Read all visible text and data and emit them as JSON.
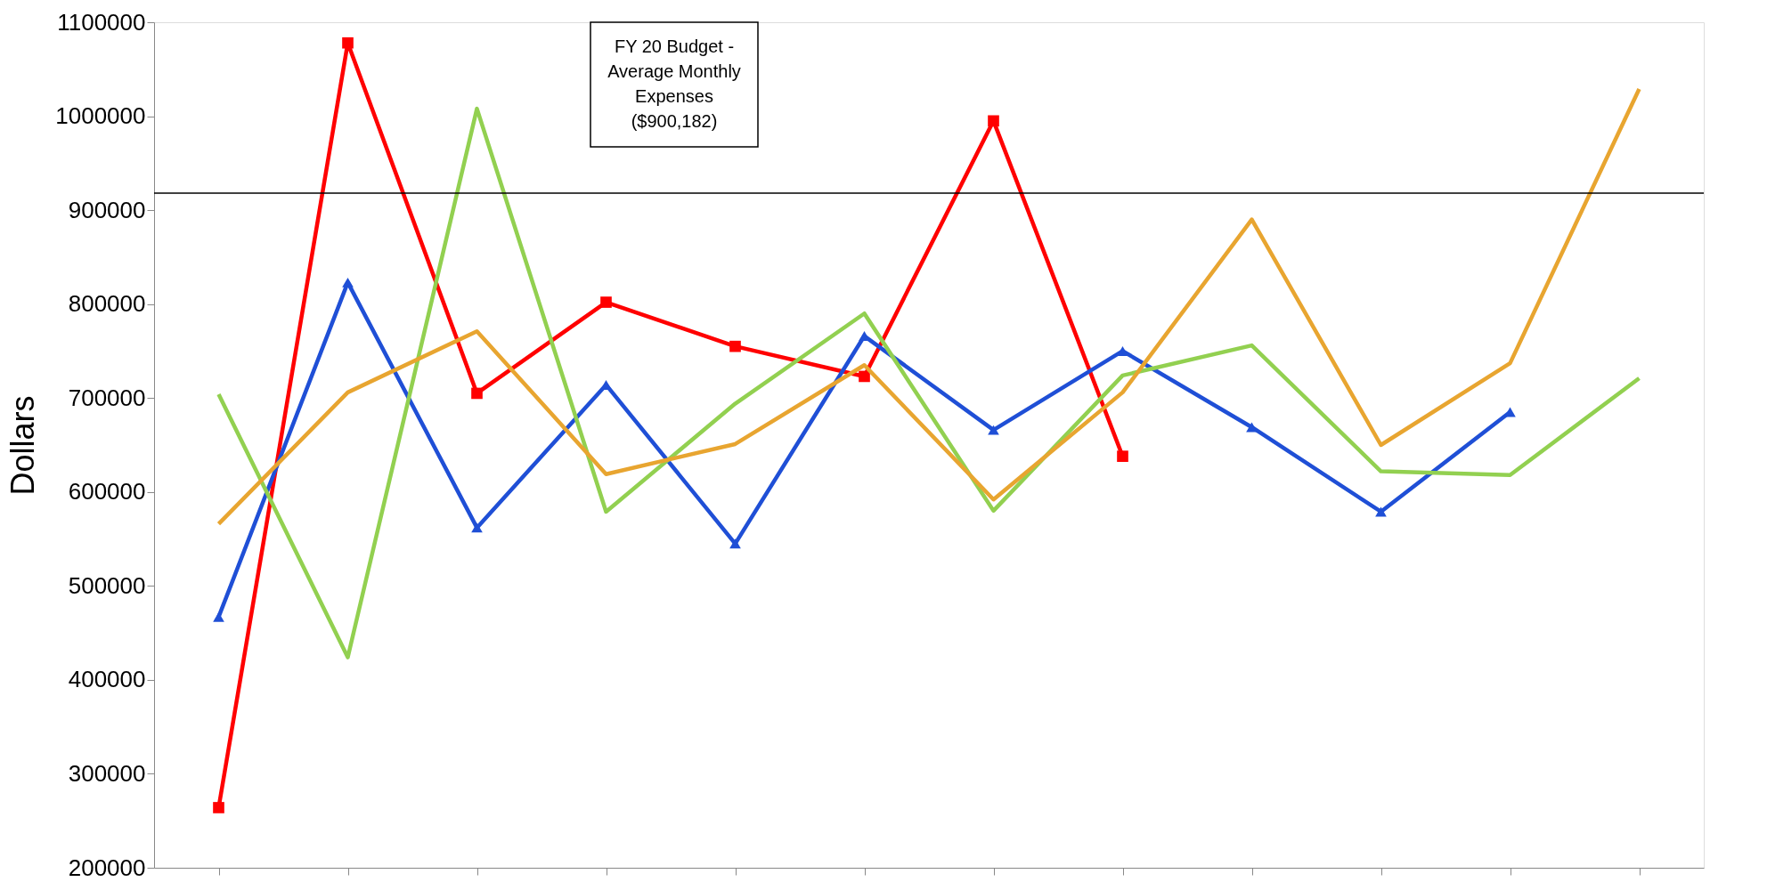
{
  "chart_data": {
    "type": "line",
    "ylabel": "Dollars",
    "categories": [
      null,
      null,
      null,
      null,
      null,
      null,
      null,
      null,
      null,
      null,
      null,
      null
    ],
    "series": [
      {
        "color": "#ff0000",
        "marker": "square",
        "values": [
          264000,
          1078000,
          705000,
          802000,
          755000,
          723000,
          995000,
          638000,
          null,
          null,
          null,
          null
        ]
      },
      {
        "color": "#1f4fd6",
        "marker": "triangle",
        "values": [
          467000,
          823000,
          562000,
          714000,
          545000,
          766000,
          666000,
          750000,
          669000,
          579000,
          685000,
          null
        ]
      },
      {
        "color": "#92d050",
        "values": [
          704000,
          424000,
          1008000,
          579000,
          694000,
          790000,
          580000,
          724000,
          756000,
          622000,
          618000,
          721000
        ]
      },
      {
        "color": "#e8a530",
        "values": [
          566000,
          706000,
          771000,
          619000,
          651000,
          735000,
          592000,
          706000,
          890000,
          650000,
          737000,
          1029000
        ]
      }
    ],
    "ylim": [
      200000,
      1100000
    ],
    "yticks": [
      200000,
      300000,
      400000,
      500000,
      600000,
      700000,
      800000,
      900000,
      1000000,
      1100000
    ],
    "ref_lines": [
      {
        "axis": "y",
        "value": 918000,
        "label": "FY 20 Budget - Average Monthly Expenses ($900,182)",
        "color": "#000000"
      }
    ],
    "grid": false
  }
}
